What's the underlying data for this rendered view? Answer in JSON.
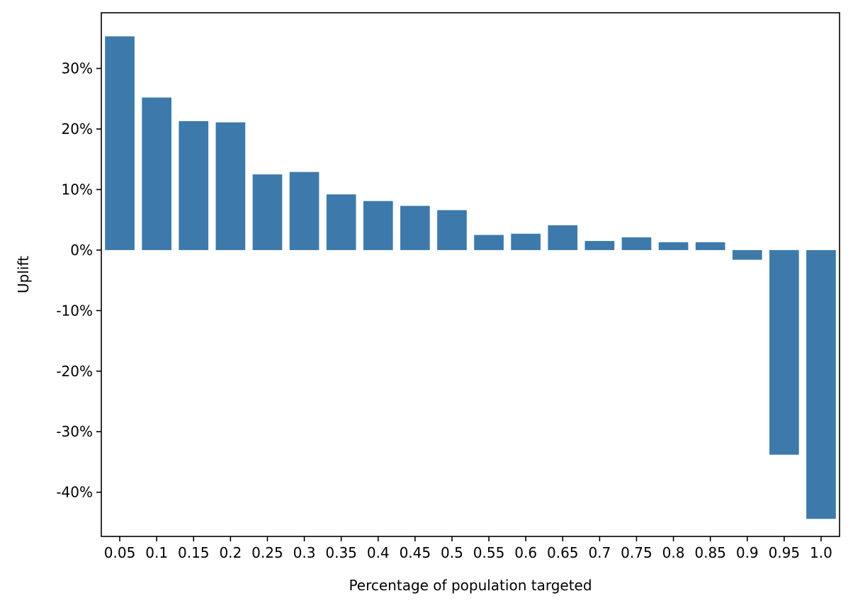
{
  "chart_data": {
    "type": "bar",
    "xlabel": "Percentage of population targeted",
    "ylabel": "Uplift",
    "categories": [
      "0.05",
      "0.1",
      "0.15",
      "0.2",
      "0.25",
      "0.3",
      "0.35",
      "0.4",
      "0.45",
      "0.5",
      "0.55",
      "0.6",
      "0.65",
      "0.7",
      "0.75",
      "0.8",
      "0.85",
      "0.9",
      "0.95",
      "1.0"
    ],
    "values": [
      35.3,
      25.2,
      21.3,
      21.1,
      12.5,
      12.9,
      9.2,
      8.1,
      7.3,
      6.6,
      2.5,
      2.7,
      4.1,
      1.5,
      2.1,
      1.3,
      1.3,
      -1.6,
      -33.8,
      -44.4
    ],
    "ylim": [
      -47.3,
      39.2
    ],
    "yticks": [
      -40,
      -30,
      -20,
      -10,
      0,
      10,
      20,
      30
    ],
    "ytick_labels": [
      "-40%",
      "-30%",
      "-20%",
      "-10%",
      "0%",
      "10%",
      "20%",
      "30%"
    ],
    "bar_color": "#3d7aab",
    "grid": false,
    "legend": false
  }
}
